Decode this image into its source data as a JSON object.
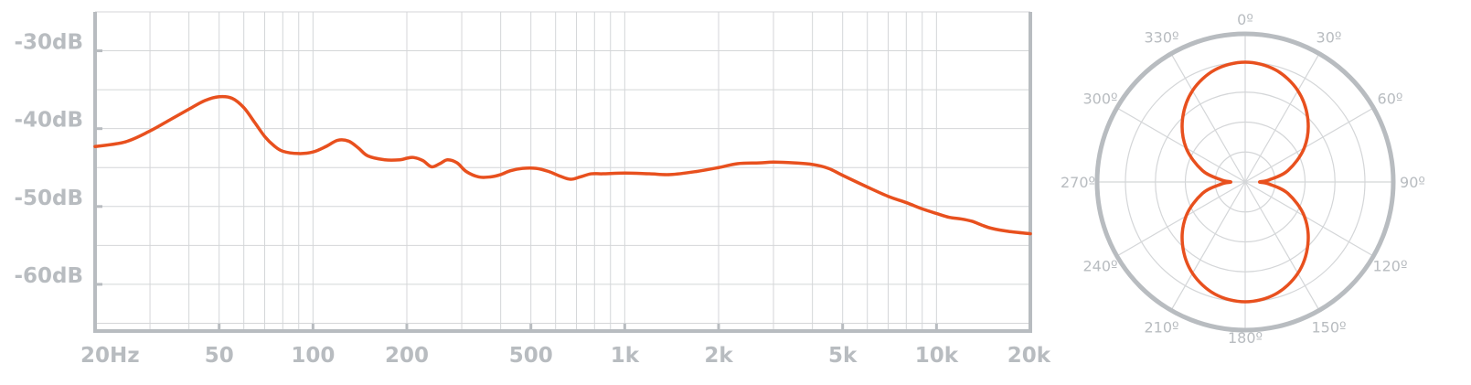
{
  "chart_data": [
    {
      "type": "line",
      "title": "",
      "xlabel": "",
      "ylabel": "",
      "x_scale": "log",
      "xlim": [
        20,
        20000
      ],
      "ylim": [
        -66,
        -25
      ],
      "grid": true,
      "x_ticks": [
        {
          "value": 20,
          "label": "20Hz"
        },
        {
          "value": 50,
          "label": "50"
        },
        {
          "value": 100,
          "label": "100"
        },
        {
          "value": 200,
          "label": "200"
        },
        {
          "value": 500,
          "label": "500"
        },
        {
          "value": 1000,
          "label": "1k"
        },
        {
          "value": 2000,
          "label": "2k"
        },
        {
          "value": 5000,
          "label": "5k"
        },
        {
          "value": 10000,
          "label": "10k"
        },
        {
          "value": 20000,
          "label": "20k"
        }
      ],
      "y_ticks": [
        {
          "value": -30,
          "label": "-30dB"
        },
        {
          "value": -40,
          "label": "-40dB"
        },
        {
          "value": -50,
          "label": "-50dB"
        },
        {
          "value": -60,
          "label": "-60dB"
        }
      ],
      "series": [
        {
          "color": "#e8501e",
          "x": [
            20,
            25,
            30,
            35,
            40,
            45,
            50,
            55,
            60,
            65,
            70,
            75,
            80,
            90,
            100,
            110,
            120,
            130,
            140,
            150,
            170,
            190,
            200,
            210,
            225,
            240,
            255,
            270,
            290,
            310,
            340,
            370,
            400,
            430,
            470,
            520,
            570,
            620,
            670,
            720,
            780,
            850,
            1000,
            1200,
            1400,
            1700,
            2000,
            2300,
            2700,
            3000,
            3500,
            4000,
            4500,
            5000,
            6000,
            7000,
            8000,
            9000,
            10000,
            11000,
            12000,
            13000,
            14000,
            15000,
            17000,
            20000
          ],
          "y": [
            -42.3,
            -41.7,
            -40.3,
            -38.8,
            -37.5,
            -36.4,
            -35.9,
            -36.1,
            -37.3,
            -39.2,
            -41.0,
            -42.2,
            -42.9,
            -43.2,
            -43.0,
            -42.3,
            -41.5,
            -41.6,
            -42.5,
            -43.5,
            -44.0,
            -44.0,
            -43.8,
            -43.7,
            -44.1,
            -44.9,
            -44.5,
            -44.0,
            -44.4,
            -45.5,
            -46.2,
            -46.2,
            -45.9,
            -45.4,
            -45.1,
            -45.1,
            -45.5,
            -46.1,
            -46.5,
            -46.2,
            -45.8,
            -45.8,
            -45.7,
            -45.8,
            -45.9,
            -45.5,
            -45.0,
            -44.5,
            -44.4,
            -44.3,
            -44.4,
            -44.6,
            -45.1,
            -46.0,
            -47.5,
            -48.7,
            -49.5,
            -50.3,
            -50.9,
            -51.4,
            -51.6,
            -51.9,
            -52.4,
            -52.8,
            -53.2,
            -53.5
          ]
        }
      ]
    },
    {
      "type": "polar",
      "title": "",
      "pattern": "figure-8",
      "angle_labels": [
        "0º",
        "30º",
        "60º",
        "90º",
        "120º",
        "150º",
        "180º",
        "210º",
        "240º",
        "270º",
        "300º",
        "330º"
      ],
      "rings": 4,
      "grid": true,
      "series": [
        {
          "color": "#e8501e",
          "angles_deg": [
            0,
            15,
            30,
            45,
            60,
            75,
            85,
            90,
            95,
            105,
            120,
            135,
            150,
            165,
            180,
            195,
            210,
            225,
            240,
            255,
            265,
            270,
            275,
            285,
            300,
            315,
            330,
            345
          ],
          "radius": [
            1.0,
            0.97,
            0.88,
            0.74,
            0.57,
            0.37,
            0.2,
            0.12,
            0.2,
            0.37,
            0.57,
            0.74,
            0.88,
            0.97,
            1.0,
            0.97,
            0.88,
            0.74,
            0.57,
            0.37,
            0.2,
            0.12,
            0.2,
            0.37,
            0.57,
            0.74,
            0.88,
            0.97
          ]
        }
      ]
    }
  ]
}
